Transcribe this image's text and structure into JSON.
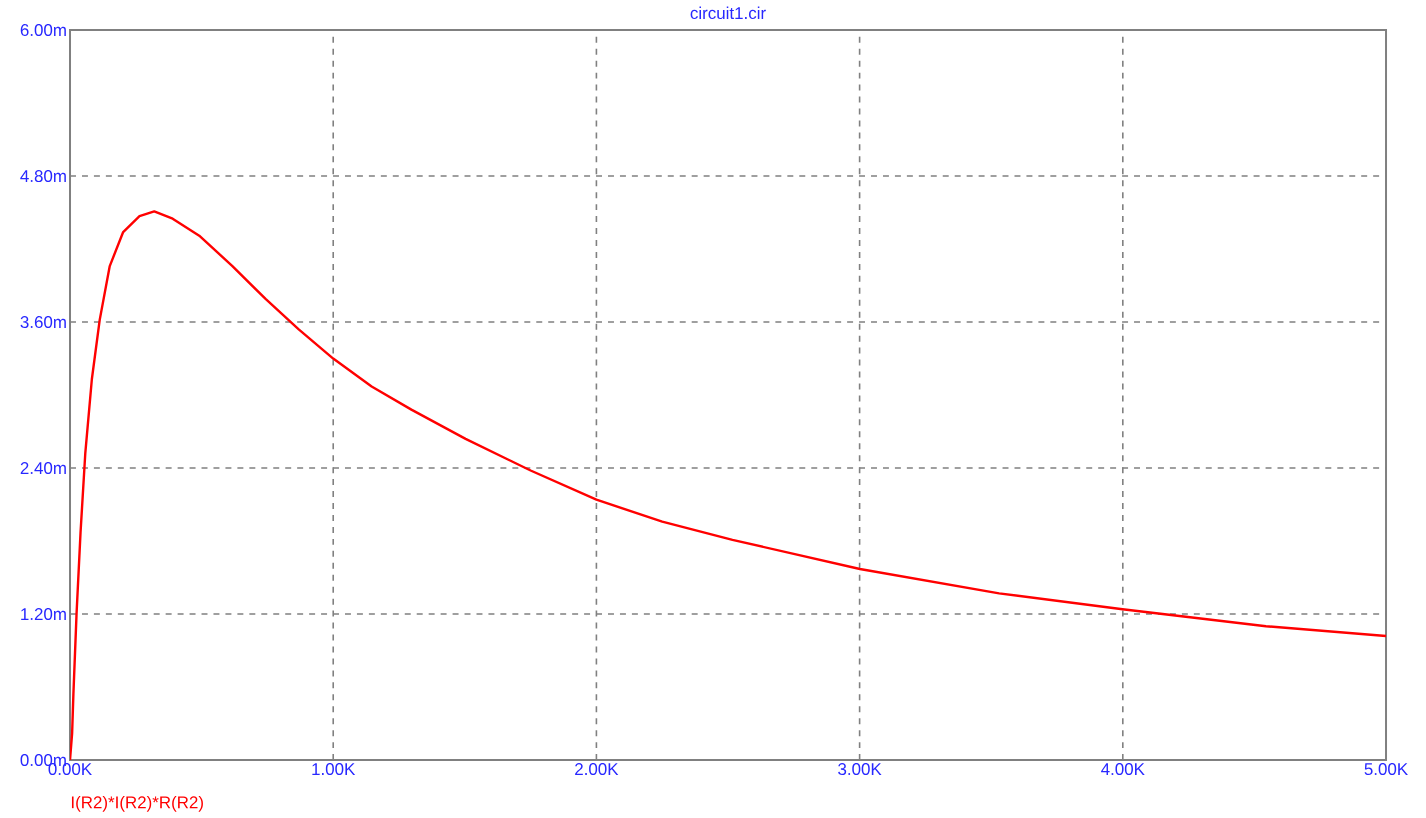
{
  "chart_data": {
    "type": "line",
    "title": "circuit1.cir",
    "x": [
      0,
      0.008,
      0.013,
      0.025,
      0.04,
      0.058,
      0.083,
      0.113,
      0.151,
      0.202,
      0.264,
      0.32,
      0.39,
      0.491,
      0.617,
      0.743,
      0.869,
      1.0,
      1.146,
      1.297,
      1.503,
      1.75,
      2.0,
      2.25,
      2.517,
      3.001,
      3.53,
      3.999,
      4.544,
      5.0
    ],
    "series": [
      {
        "name": "I(R2)*I(R2)*R(R2)",
        "color": "#ff0000",
        "values": [
          0,
          0.22,
          0.55,
          1.21,
          1.87,
          2.52,
          3.13,
          3.62,
          4.06,
          4.34,
          4.47,
          4.51,
          4.45,
          4.31,
          4.06,
          3.79,
          3.54,
          3.3,
          3.07,
          2.88,
          2.64,
          2.38,
          2.14,
          1.96,
          1.81,
          1.57,
          1.37,
          1.24,
          1.1,
          1.02
        ]
      }
    ],
    "xlim": [
      0,
      5
    ],
    "ylim": [
      0,
      6
    ],
    "xticks": [
      {
        "value": 0,
        "label": "0.00K"
      },
      {
        "value": 1,
        "label": "1.00K"
      },
      {
        "value": 2,
        "label": "2.00K"
      },
      {
        "value": 3,
        "label": "3.00K"
      },
      {
        "value": 4,
        "label": "4.00K"
      },
      {
        "value": 5,
        "label": "5.00K"
      }
    ],
    "yticks": [
      {
        "value": 0,
        "label": "0.00m"
      },
      {
        "value": 1.2,
        "label": "1.20m"
      },
      {
        "value": 2.4,
        "label": "2.40m"
      },
      {
        "value": 3.6,
        "label": "3.60m"
      },
      {
        "value": 4.8,
        "label": "4.80m"
      },
      {
        "value": 6,
        "label": "6.00m"
      }
    ],
    "grid": true,
    "legend": "bottom left",
    "marker": "none",
    "line_style": "solid"
  }
}
